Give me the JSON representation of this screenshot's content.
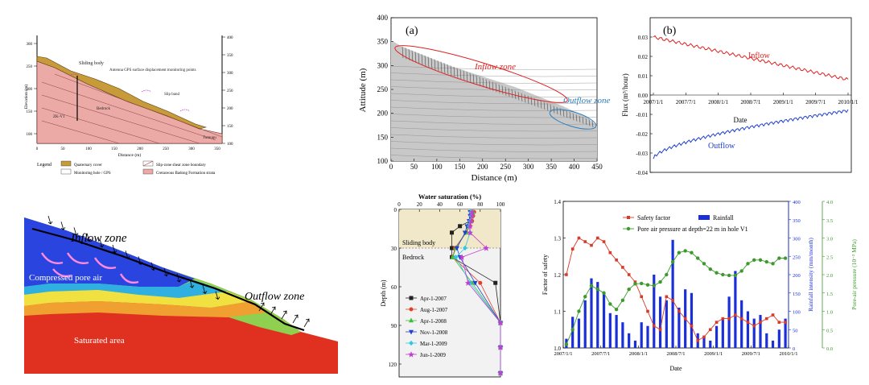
{
  "geology": {
    "legend_title": "Legend",
    "legend_items": [
      "Quaternary cover",
      "Slip-zone shear zone boundary",
      "Monitoring hole / GPS",
      "Cretaceous Badong Formation strata"
    ],
    "labels": {
      "body": "Sliding body",
      "gps": "Antenna GPS surface displacement monitoring points",
      "slip": "Slip band",
      "rock": "Bedrock",
      "bottom": "Tumuqu",
      "borehole": "ZK-V1"
    },
    "xlabel": "Distance (m)",
    "ylabel": "Elevation (m)",
    "left_ticks": [
      "300",
      "250",
      "200",
      "150",
      "100"
    ],
    "right_ticks": [
      "400",
      "350",
      "300",
      "250",
      "200",
      "150",
      "100"
    ],
    "x_ticks": [
      "0",
      "50",
      "100",
      "150",
      "200",
      "250",
      "300",
      "350"
    ]
  },
  "flow": {
    "panel": "(a)",
    "inflow": "Inflow zone",
    "outflow": "Outflow zone",
    "xlabel": "Distance (m)",
    "ylabel": "Attitude (m)",
    "x_ticks": [
      "0",
      "50",
      "100",
      "150",
      "200",
      "250",
      "300",
      "350",
      "400",
      "450"
    ],
    "y_ticks": [
      "100",
      "150",
      "200",
      "250",
      "300",
      "350",
      "400"
    ],
    "colors": {
      "inflow": "#e02020",
      "outflow": "#2a7fc0"
    }
  },
  "flux": {
    "panel": "(b)",
    "ylabel": "Flux (m³/hour)",
    "xlabel": "Date",
    "inflow": "Inflow",
    "outflow": "Outflow",
    "x_ticks": [
      "2007/1/1",
      "2007/7/1",
      "2008/1/1",
      "2008/7/1",
      "2009/1/1",
      "2009/7/1",
      "2010/1/1"
    ],
    "y_ticks": [
      "0.03",
      "0.02",
      "0.01",
      "0.00",
      "-0.01",
      "-0.02",
      "-0.03",
      "-0.04"
    ],
    "colors": {
      "inflow": "#e02020",
      "outflow": "#1f3fd0"
    }
  },
  "schematic": {
    "inflow": "Inflow zone",
    "outflow": "Outflow zone",
    "pore": "Compressed pore air",
    "saturated": "Saturated area"
  },
  "chart_data": [
    {
      "type": "line",
      "title": "Water saturation (%)",
      "xlabel": "Water saturation (%)",
      "ylabel": "Depth (m)",
      "xlim": [
        0,
        100
      ],
      "ylim": [
        0,
        130
      ],
      "x_ticks": [
        "0",
        "20",
        "40",
        "60",
        "80",
        "100"
      ],
      "y_ticks": [
        "0",
        "30",
        "60",
        "90",
        "120"
      ],
      "zones": {
        "upper": "Sliding body",
        "lower": "Bedrock"
      },
      "depths": [
        2,
        5,
        9,
        13,
        18,
        30,
        37,
        57,
        88,
        107,
        127
      ],
      "series": [
        {
          "name": "Apr-1-2007",
          "color": "#222222",
          "marker": "square",
          "values": [
            72,
            71,
            70,
            60,
            52,
            52,
            52,
            95,
            100,
            100,
            100
          ]
        },
        {
          "name": "Aug-1-2007",
          "color": "#e0402a",
          "marker": "circle",
          "values": [
            74,
            73,
            72,
            70,
            66,
            55,
            53,
            80,
            100,
            100,
            100
          ]
        },
        {
          "name": "Apr-1-2008",
          "color": "#3cbf3c",
          "marker": "triangle",
          "values": [
            73,
            72,
            71,
            68,
            66,
            56,
            53,
            72,
            100,
            100,
            100
          ]
        },
        {
          "name": "Nov-1-2008",
          "color": "#2040d0",
          "marker": "triangle-down",
          "values": [
            70,
            70,
            69,
            67,
            65,
            57,
            60,
            75,
            100,
            100,
            100
          ]
        },
        {
          "name": "Mar-1-2009",
          "color": "#30c8e0",
          "marker": "diamond",
          "values": [
            71,
            71,
            70,
            69,
            70,
            65,
            56,
            70,
            100,
            100,
            100
          ]
        },
        {
          "name": "Jun-1-2009",
          "color": "#c040d0",
          "marker": "star",
          "values": [
            72,
            72,
            71,
            70,
            70,
            86,
            62,
            68,
            100,
            100,
            100
          ]
        }
      ],
      "legend": "bottom-left",
      "grid": false
    },
    {
      "type": "line",
      "xlabel": "Date",
      "ylabel": "Factor of safety",
      "y2label": "Rainfall intensity (mm/month)",
      "y3label": "Pore-air pressure (10⁻² MPa)",
      "x_ticks": [
        "2007/1/1",
        "2007/7/1",
        "2008/1/1",
        "2008/7/1",
        "2009/1/1",
        "2009/7/1",
        "2010/1/1"
      ],
      "ylim": [
        1.0,
        1.4
      ],
      "y_ticks": [
        "1.0",
        "1.1",
        "1.2",
        "1.3",
        "1.4"
      ],
      "y2lim": [
        0,
        400
      ],
      "y2_ticks": [
        "0",
        "50",
        "100",
        "150",
        "200",
        "250",
        "300",
        "350",
        "400"
      ],
      "y3lim": [
        0,
        4.0
      ],
      "y3_ticks": [
        "0.0",
        "0.5",
        "1.0",
        "1.5",
        "2.0",
        "2.5",
        "3.0",
        "3.5",
        "4.0"
      ],
      "legend": "top-left",
      "x_months": 36,
      "safety_factor": {
        "name": "Safety factor",
        "color": "#d83a2a",
        "values": [
          1.2,
          1.27,
          1.3,
          1.29,
          1.28,
          1.3,
          1.29,
          1.26,
          1.24,
          1.22,
          1.2,
          1.18,
          1.14,
          1.1,
          1.06,
          1.05,
          1.14,
          1.13,
          1.1,
          1.08,
          1.06,
          1.02,
          1.03,
          1.05,
          1.07,
          1.08,
          1.08,
          1.09,
          1.08,
          1.07,
          1.06,
          1.07,
          1.08,
          1.09,
          1.07,
          1.07
        ]
      },
      "rainfall": {
        "name": "Rainfall",
        "color": "#1a2fd8",
        "values": [
          25,
          85,
          80,
          130,
          190,
          180,
          150,
          95,
          90,
          70,
          40,
          20,
          70,
          60,
          200,
          140,
          130,
          295,
          110,
          160,
          150,
          40,
          30,
          20,
          60,
          80,
          140,
          210,
          130,
          100,
          80,
          90,
          40,
          20,
          50,
          80
        ]
      },
      "pore_air": {
        "name": "Pore air pressure at depth=22 m in hole V1",
        "color": "#3c9a2c",
        "values": [
          0.1,
          0.5,
          1.0,
          1.4,
          1.7,
          1.6,
          1.5,
          1.2,
          1.05,
          1.3,
          1.6,
          1.75,
          1.76,
          1.72,
          1.7,
          1.8,
          2.0,
          2.35,
          2.6,
          2.65,
          2.6,
          2.45,
          2.3,
          2.15,
          2.05,
          2.0,
          1.98,
          1.98,
          2.1,
          2.3,
          2.4,
          2.4,
          2.35,
          2.3,
          2.45,
          2.45
        ]
      }
    }
  ]
}
